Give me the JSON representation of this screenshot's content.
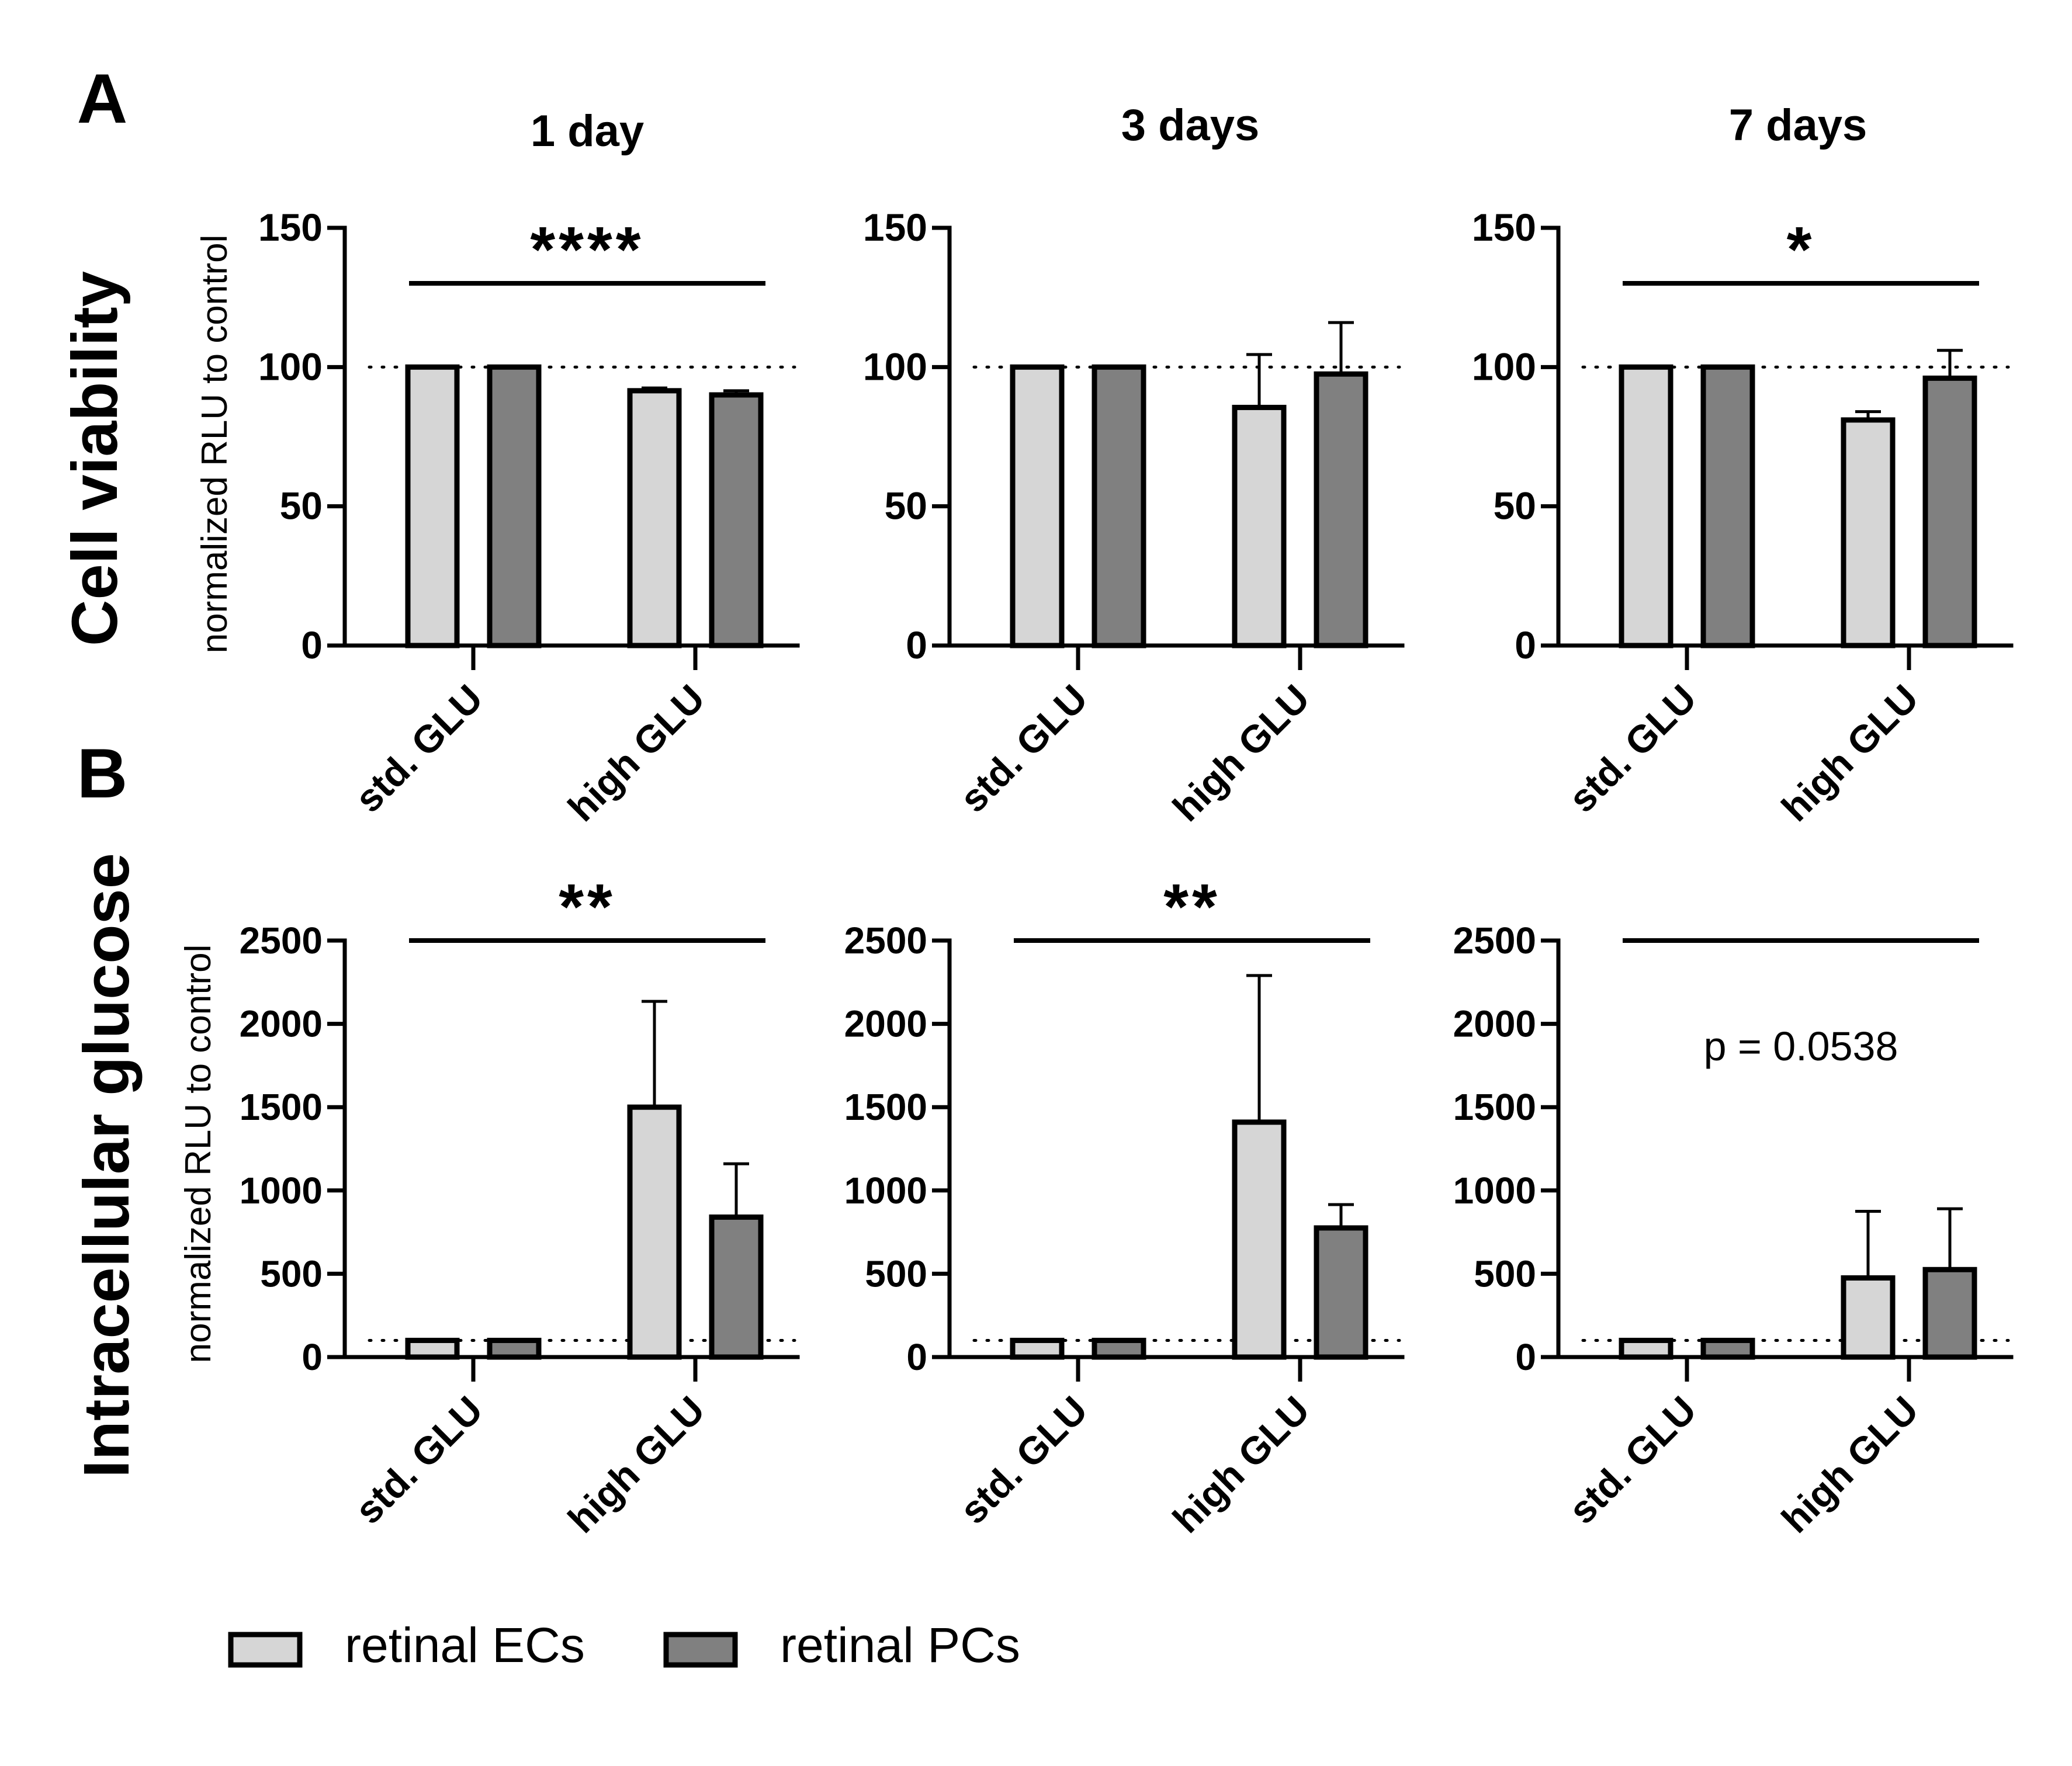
{
  "figure": {
    "panel_labels": [
      "A",
      "B"
    ],
    "row_titles": [
      "Cell viability",
      "Intracellular glucose"
    ],
    "ylabel": "normalized RLU to control",
    "column_titles": [
      "1 day",
      "3 days",
      "7 days"
    ]
  },
  "legend": [
    {
      "label": "retinal ECs",
      "color": "#d6d6d6"
    },
    {
      "label": "retinal PCs",
      "color": "#808080"
    }
  ],
  "chart_data": [
    {
      "type": "bar",
      "row": "A",
      "title": "1 day",
      "categories": [
        "std. GLU",
        "high GLU"
      ],
      "ylim": [
        0,
        150
      ],
      "yticks": [
        "0",
        "50",
        "100",
        "150"
      ],
      "reference_line": 100,
      "series": [
        {
          "name": "retinal ECs",
          "values": [
            100,
            91.5
          ],
          "errors": [
            0,
            1
          ]
        },
        {
          "name": "retinal PCs",
          "values": [
            100,
            90
          ],
          "errors": [
            0,
            1.5
          ]
        }
      ],
      "annotation": "****"
    },
    {
      "type": "bar",
      "row": "A",
      "title": "3 days",
      "categories": [
        "std. GLU",
        "high GLU"
      ],
      "ylim": [
        0,
        150
      ],
      "yticks": [
        "0",
        "50",
        "100",
        "150"
      ],
      "reference_line": 100,
      "series": [
        {
          "name": "retinal ECs",
          "values": [
            100,
            85.5
          ],
          "errors": [
            0,
            19
          ]
        },
        {
          "name": "retinal PCs",
          "values": [
            100,
            97.5
          ],
          "errors": [
            0,
            18.5
          ]
        }
      ],
      "annotation": ""
    },
    {
      "type": "bar",
      "row": "A",
      "title": "7 days",
      "categories": [
        "std. GLU",
        "high GLU"
      ],
      "ylim": [
        0,
        150
      ],
      "yticks": [
        "0",
        "50",
        "100",
        "150"
      ],
      "reference_line": 100,
      "series": [
        {
          "name": "retinal ECs",
          "values": [
            100,
            81
          ],
          "errors": [
            0,
            3
          ]
        },
        {
          "name": "retinal PCs",
          "values": [
            100,
            96
          ],
          "errors": [
            0,
            10
          ]
        }
      ],
      "annotation": "*"
    },
    {
      "type": "bar",
      "row": "B",
      "title": "1 day",
      "categories": [
        "std. GLU",
        "high GLU"
      ],
      "ylim": [
        0,
        2500
      ],
      "yticks": [
        "0",
        "500",
        "1000",
        "1500",
        "2000",
        "2500"
      ],
      "reference_line": 100,
      "series": [
        {
          "name": "retinal ECs",
          "values": [
            100,
            1500
          ],
          "errors": [
            0,
            635
          ]
        },
        {
          "name": "retinal PCs",
          "values": [
            100,
            840
          ],
          "errors": [
            0,
            320
          ]
        }
      ],
      "annotation": "**"
    },
    {
      "type": "bar",
      "row": "B",
      "title": "3 days",
      "categories": [
        "std. GLU",
        "high GLU"
      ],
      "ylim": [
        0,
        2500
      ],
      "yticks": [
        "0",
        "500",
        "1000",
        "1500",
        "2000",
        "2500"
      ],
      "reference_line": 100,
      "series": [
        {
          "name": "retinal ECs",
          "values": [
            100,
            1410
          ],
          "errors": [
            0,
            880
          ]
        },
        {
          "name": "retinal PCs",
          "values": [
            100,
            775
          ],
          "errors": [
            0,
            140
          ]
        }
      ],
      "annotation": "**"
    },
    {
      "type": "bar",
      "row": "B",
      "title": "7 days",
      "categories": [
        "std. GLU",
        "high GLU"
      ],
      "ylim": [
        0,
        2500
      ],
      "yticks": [
        "0",
        "500",
        "1000",
        "1500",
        "2000",
        "2500"
      ],
      "reference_line": 100,
      "series": [
        {
          "name": "retinal ECs",
          "values": [
            100,
            475
          ],
          "errors": [
            0,
            400
          ]
        },
        {
          "name": "retinal PCs",
          "values": [
            100,
            525
          ],
          "errors": [
            0,
            365
          ]
        }
      ],
      "annotation": "p = 0.0538"
    }
  ]
}
